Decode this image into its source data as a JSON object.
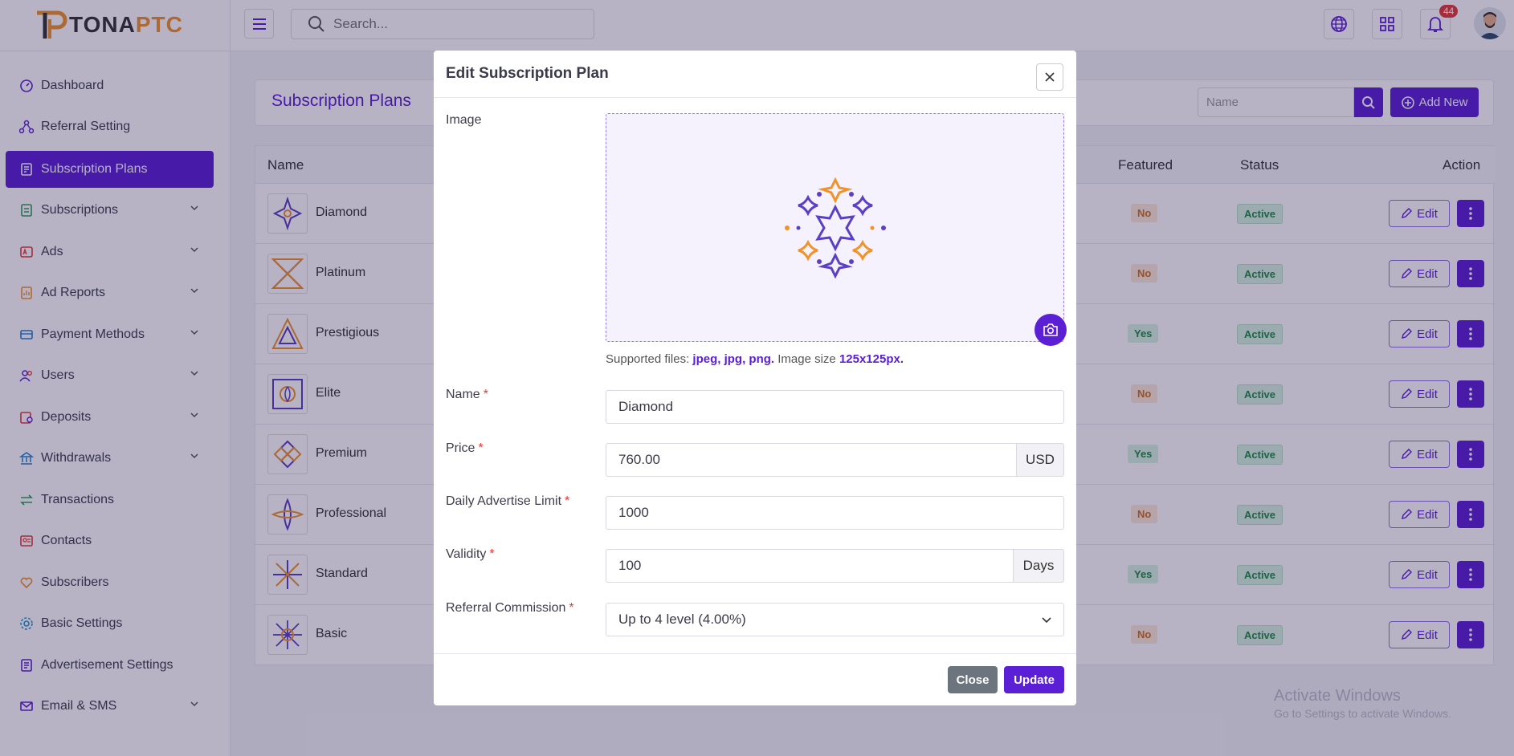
{
  "brand": {
    "name_part1": "TONA",
    "name_part2": "PTC"
  },
  "topbar": {
    "search_placeholder": "Search...",
    "notification_count": "44"
  },
  "sidebar": {
    "items": [
      {
        "label": "Dashboard"
      },
      {
        "label": "Referral Setting"
      },
      {
        "label": "Subscription Plans"
      },
      {
        "label": "Subscriptions"
      },
      {
        "label": "Ads"
      },
      {
        "label": "Ad Reports"
      },
      {
        "label": "Payment Methods"
      },
      {
        "label": "Users"
      },
      {
        "label": "Deposits"
      },
      {
        "label": "Withdrawals"
      },
      {
        "label": "Transactions"
      },
      {
        "label": "Contacts"
      },
      {
        "label": "Subscribers"
      },
      {
        "label": "Basic Settings"
      },
      {
        "label": "Advertisement Settings"
      },
      {
        "label": "Email & SMS"
      }
    ]
  },
  "page": {
    "title": "Subscription Plans",
    "filter_placeholder": "Name",
    "add_new_label": "Add New"
  },
  "table": {
    "columns": {
      "name": "Name",
      "featured": "Featured",
      "status": "Status",
      "action": "Action"
    },
    "edit_label": "Edit",
    "rows": [
      {
        "name": "Diamond",
        "featured": "No",
        "status": "Active"
      },
      {
        "name": "Platinum",
        "featured": "No",
        "status": "Active"
      },
      {
        "name": "Prestigious",
        "featured": "Yes",
        "status": "Active"
      },
      {
        "name": "Elite",
        "featured": "No",
        "status": "Active"
      },
      {
        "name": "Premium",
        "featured": "Yes",
        "status": "Active"
      },
      {
        "name": "Professional",
        "featured": "No",
        "status": "Active"
      },
      {
        "name": "Standard",
        "featured": "Yes",
        "status": "Active"
      },
      {
        "name": "Basic",
        "featured": "No",
        "status": "Active"
      }
    ]
  },
  "modal": {
    "title": "Edit Subscription Plan",
    "image_label": "Image",
    "hint_prefix": "Supported files: ",
    "hint_types": "jpeg, jpg, png.",
    "hint_mid": " Image size ",
    "hint_size": "125x125px.",
    "name_label": "Name",
    "name_value": "Diamond",
    "price_label": "Price",
    "price_value": "760.00",
    "price_unit": "USD",
    "limit_label": "Daily Advertise Limit",
    "limit_value": "1000",
    "validity_label": "Validity",
    "validity_value": "100",
    "validity_unit": "Days",
    "commission_label": "Referral Commission",
    "commission_value": "Up to 4 level (4.00%)",
    "required_mark": "*",
    "close_label": "Close",
    "update_label": "Update"
  },
  "watermark": {
    "line1": "Activate Windows",
    "line2": "Go to Settings to activate Windows."
  },
  "colors": {
    "primary": "#5b20d6",
    "accent": "#f0932b"
  }
}
